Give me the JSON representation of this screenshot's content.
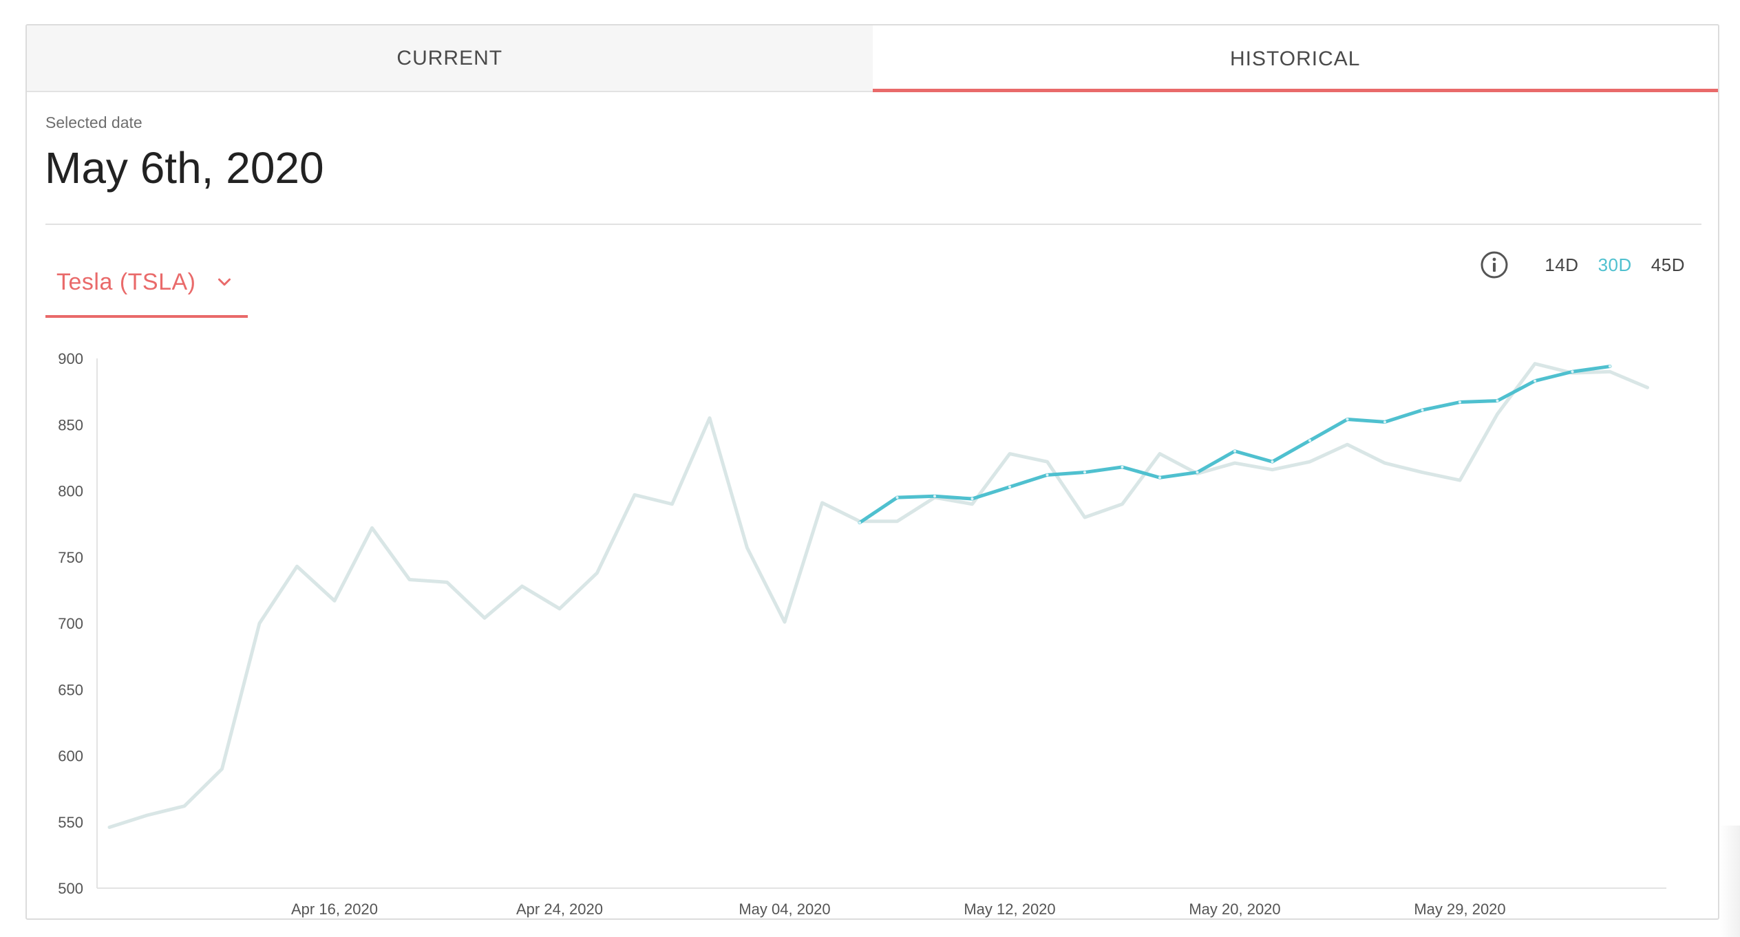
{
  "tabs": [
    {
      "label": "CURRENT",
      "active": false
    },
    {
      "label": "HISTORICAL",
      "active": true
    }
  ],
  "selected_date": {
    "label": "Selected date",
    "value": "May 6th, 2020"
  },
  "stock_select": {
    "label": "Tesla (TSLA)",
    "icon": "chevron-down-icon"
  },
  "range_options": {
    "info_icon": "info-icon",
    "items": [
      {
        "label": "14D",
        "active": false
      },
      {
        "label": "30D",
        "active": true
      },
      {
        "label": "45D",
        "active": false
      }
    ]
  },
  "colors": {
    "accent_red": "#e96a6a",
    "accent_teal": "#4fc0cf",
    "history_line": "#d9e6e6"
  },
  "chart_data": {
    "type": "line",
    "ylim": [
      500,
      900
    ],
    "yticks": [
      500,
      550,
      600,
      650,
      700,
      750,
      800,
      850,
      900
    ],
    "x_tick_labels": [
      {
        "index": 6,
        "label": "Apr 16, 2020"
      },
      {
        "index": 12,
        "label": "Apr 24, 2020"
      },
      {
        "index": 18,
        "label": "May 04, 2020"
      },
      {
        "index": 24,
        "label": "May 12, 2020"
      },
      {
        "index": 30,
        "label": "May 20, 2020"
      },
      {
        "index": 36,
        "label": "May 29, 2020"
      }
    ],
    "x_count": 42,
    "series": [
      {
        "color": "#d9e6e6",
        "start_index": 0,
        "values": [
          546,
          555,
          562,
          590,
          700,
          743,
          717,
          772,
          733,
          731,
          704,
          728,
          711,
          738,
          797,
          790,
          855,
          757,
          701,
          791,
          777,
          777,
          795,
          790,
          828,
          822,
          780,
          790,
          828,
          813,
          821,
          816,
          822,
          835,
          821,
          814,
          808,
          858,
          896,
          889,
          890,
          878
        ]
      },
      {
        "color": "#4fc0cf",
        "start_index": 20,
        "values": [
          776,
          795,
          796,
          794,
          803,
          812,
          814,
          818,
          810,
          814,
          830,
          822,
          838,
          854,
          852,
          861,
          867,
          868,
          883,
          890,
          894
        ]
      }
    ]
  }
}
